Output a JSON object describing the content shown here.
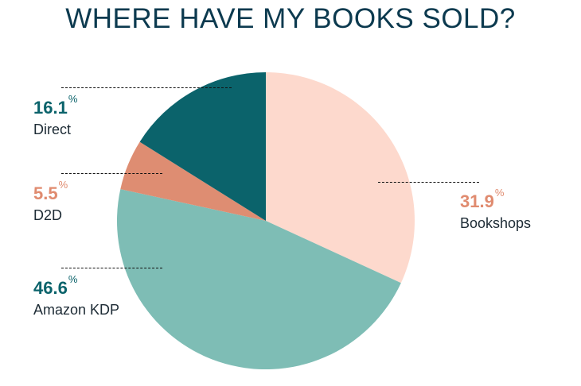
{
  "chart_data": {
    "type": "pie",
    "title": "WHERE HAVE MY BOOKS SOLD?",
    "percent_symbol": "%",
    "slices": [
      {
        "label": "Bookshops",
        "value": 31.9,
        "value_text": "31.9",
        "color": "#fdd9cd",
        "value_color": "#e08b6f"
      },
      {
        "label": "Amazon KDP",
        "value": 46.6,
        "value_text": "46.6",
        "color": "#7ebdb5",
        "value_color": "#0b636b"
      },
      {
        "label": "D2D",
        "value": 5.5,
        "value_text": "5.5",
        "color": "#de8d72",
        "value_color": "#e08b6f"
      },
      {
        "label": "Direct",
        "value": 16.1,
        "value_text": "16.1",
        "color": "#0b636b",
        "value_color": "#0b636b"
      }
    ]
  }
}
